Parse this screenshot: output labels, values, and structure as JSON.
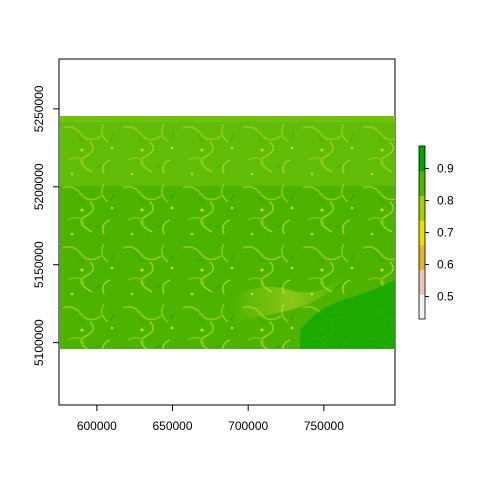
{
  "chart_data": {
    "type": "heatmap",
    "title": "",
    "xlabel": "",
    "ylabel": "",
    "xlim": [
      575000,
      797000
    ],
    "ylim": [
      5060000,
      5282000
    ],
    "x_ticks": [
      600000,
      650000,
      700000,
      750000
    ],
    "y_ticks": [
      5100000,
      5150000,
      5200000,
      5250000
    ],
    "raster_extent": {
      "xmin": 575000,
      "xmax": 797000,
      "ymin": 5089000,
      "ymax": 5243000
    },
    "value_range": [
      0.43,
      0.97
    ],
    "raster_summary": {
      "dominant_value": 0.93,
      "low_value_patches": [
        0.7,
        0.8
      ],
      "southeast_region_value": 0.95
    },
    "legend": {
      "type": "colorbar",
      "placement": "right",
      "ticks": [
        0.5,
        0.6,
        0.7,
        0.8,
        0.9
      ],
      "colors": [
        "#f2f2f2",
        "#efc4b3",
        "#e6b32a",
        "#e8e000",
        "#9fd000",
        "#4cb800",
        "#00a600"
      ]
    },
    "grid": false
  }
}
